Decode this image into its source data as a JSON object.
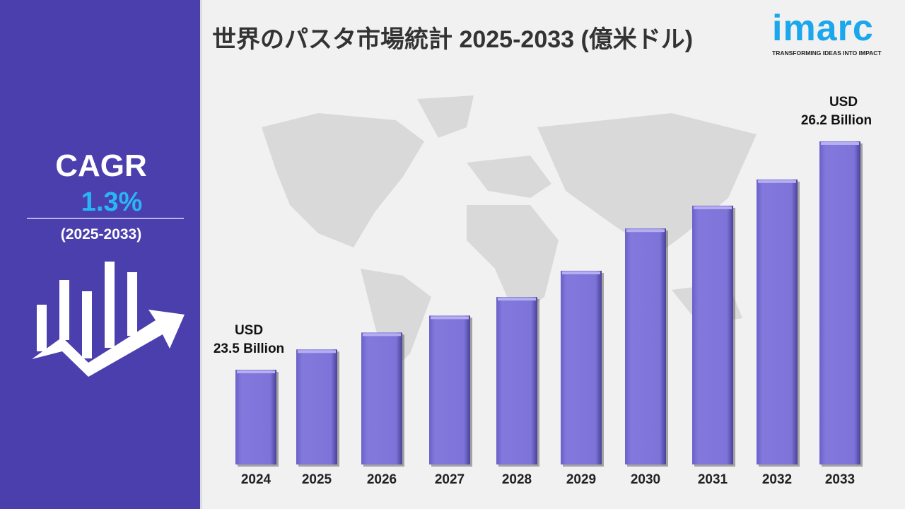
{
  "title": "世界のパスタ市場統計 2025-2033 (億米ドル)",
  "logo": {
    "name": "imarc",
    "tagline": "TRANSFORMING IDEAS INTO IMPACT"
  },
  "cagr": {
    "label": "CAGR",
    "value": "1.3%",
    "period": "(2025-2033)"
  },
  "colors": {
    "panel": "#4b3fae",
    "bar": "#7d73d8",
    "accent": "#29b6f6"
  },
  "chart_data": {
    "type": "bar",
    "title": "世界のパスタ市場統計 2025-2033 (億米ドル)",
    "categories": [
      "2024",
      "2025",
      "2026",
      "2027",
      "2028",
      "2029",
      "2030",
      "2031",
      "2032",
      "2033"
    ],
    "values": [
      23.5,
      23.74,
      23.94,
      24.14,
      24.36,
      24.67,
      25.17,
      25.44,
      25.75,
      26.2
    ],
    "ylim": [
      22.38,
      26.2
    ],
    "unit": "USD Billion",
    "annotations": [
      {
        "category": "2024",
        "line1": "USD",
        "line2": "23.5 Billion"
      },
      {
        "category": "2033",
        "line1": "USD",
        "line2": "26.2 Billion"
      }
    ],
    "grid": false
  }
}
